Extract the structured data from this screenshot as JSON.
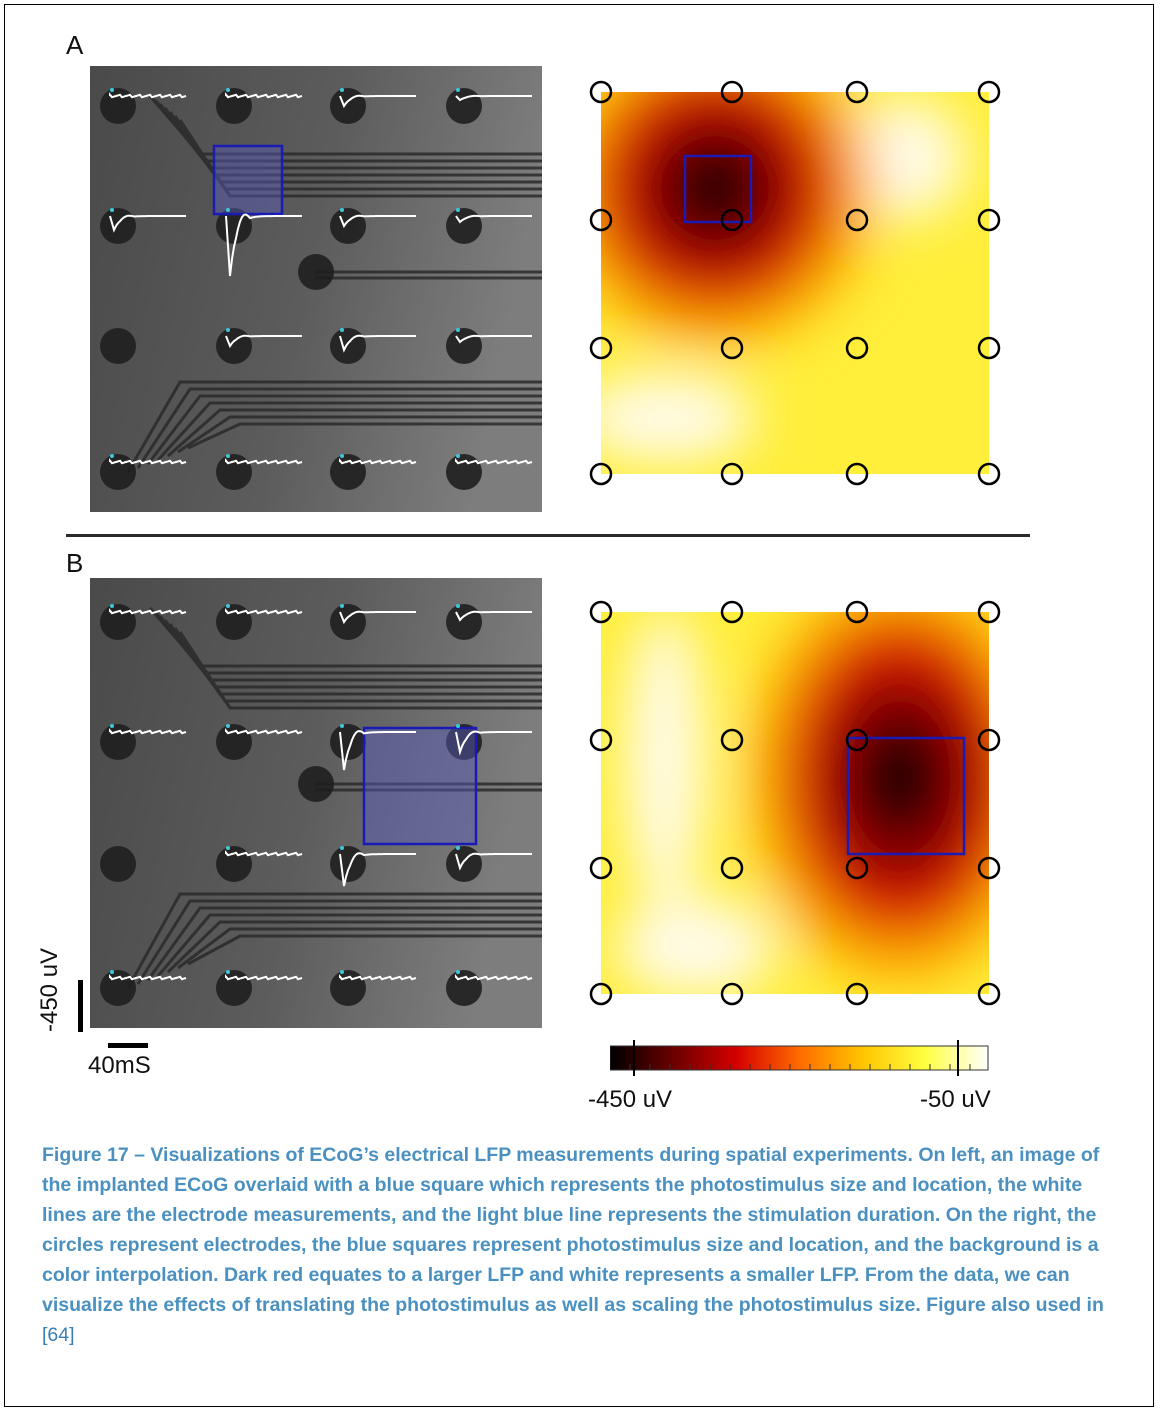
{
  "panels": {
    "a": {
      "label": "A"
    },
    "b": {
      "label": "B"
    }
  },
  "scale_bar": {
    "vertical_label": "-450 uV",
    "horizontal_label": "40mS"
  },
  "colorbar": {
    "min_label": "-450 uV",
    "max_label": "-50 uV",
    "colors": [
      "#000000",
      "#6b0000",
      "#d40000",
      "#ff6a00",
      "#ffc400",
      "#ffff40",
      "#ffffff"
    ]
  },
  "colors": {
    "stimulus_square": "#1a1ab4",
    "caption": "#4a90c0",
    "trace": "#ffffff",
    "stim_marker": "#3cc8d8"
  },
  "caption": {
    "text": "Figure 17 – Visualizations of ECoG’s electrical LFP measurements during spatial experiments. On left, an image of the implanted ECoG overlaid with a blue square which represents the photostimulus size and location, the white lines are the electrode measurements, and the light blue line represents the stimulation duration. On the right, the circles represent electrodes, the blue squares represent photostimulus size and location, and the background is a color interpolation. Dark red equates to a larger LFP and white represents a smaller LFP. From the data, we can visualize the effects of translating the photostimulus as well as scaling the photostimulus size. Figure also used in ",
    "reference": "[64]"
  }
}
